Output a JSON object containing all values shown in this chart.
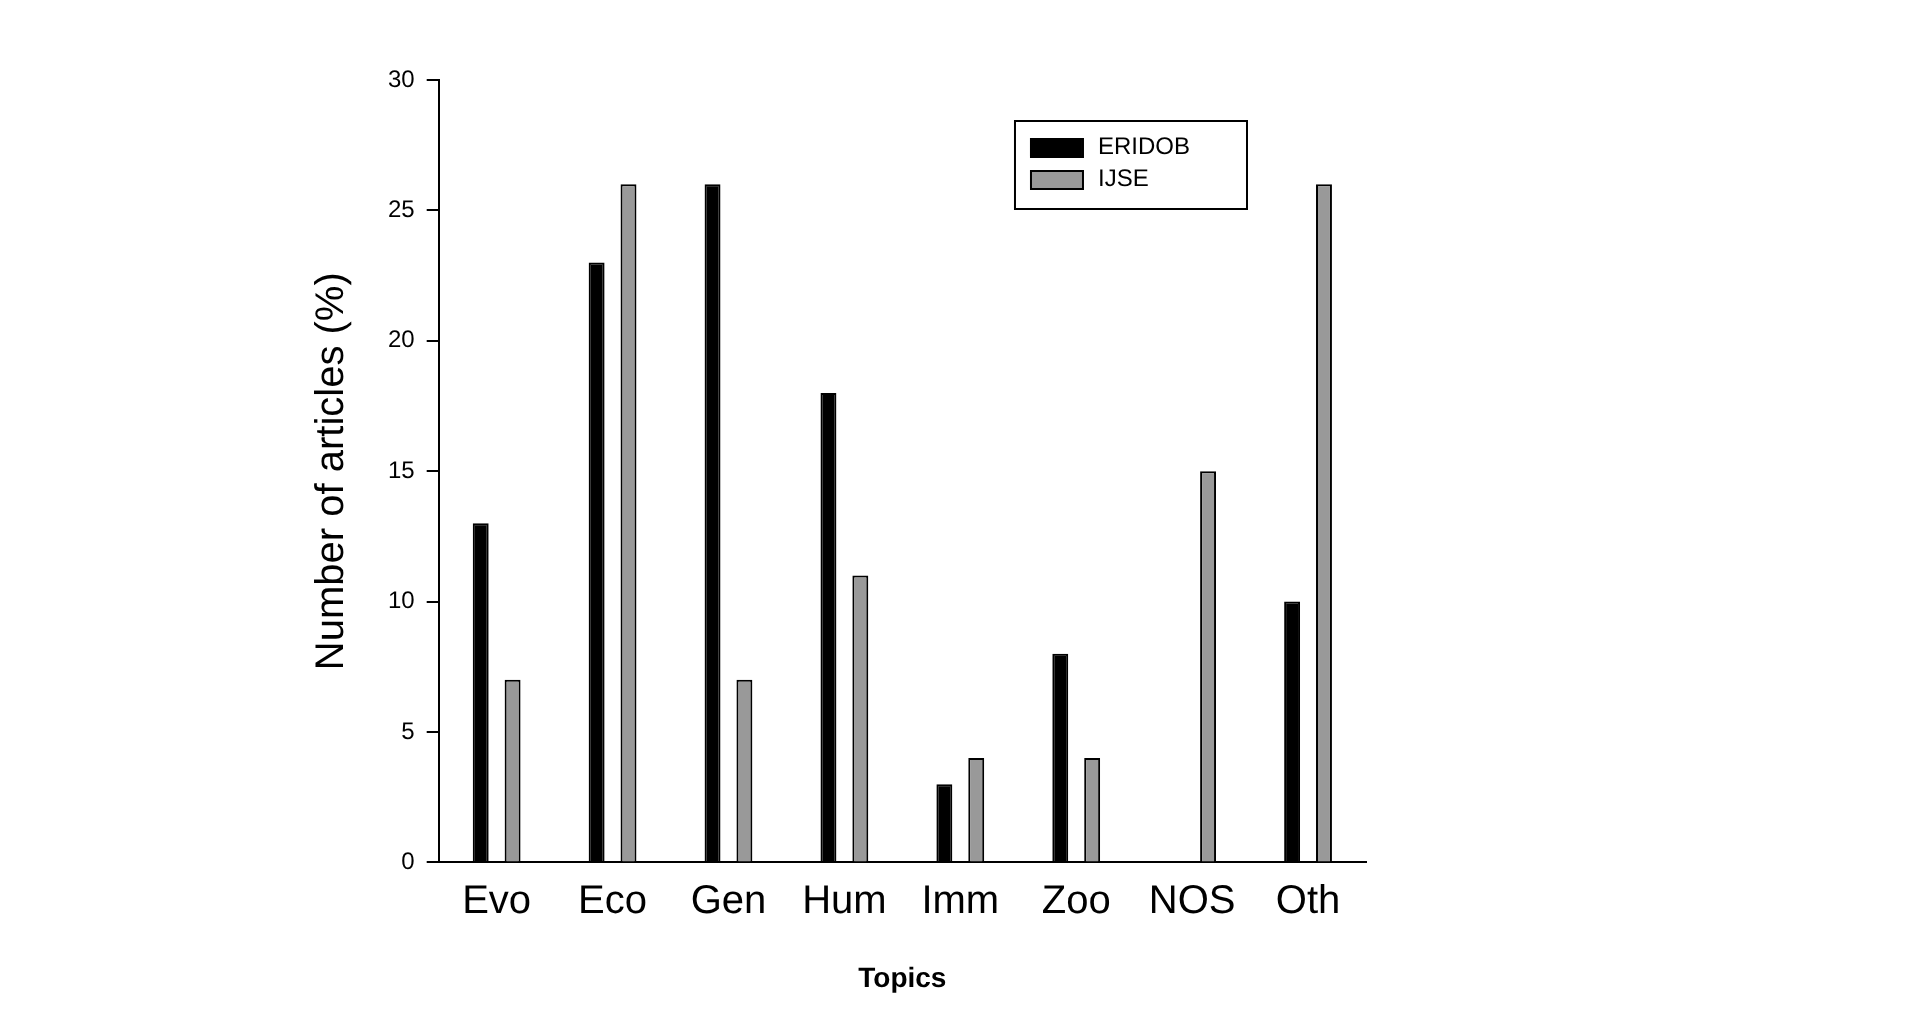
{
  "chart_data": {
    "type": "bar",
    "xlabel": "Topics",
    "ylabel": "Number of articles (%)",
    "categories": [
      "Evo",
      "Eco",
      "Gen",
      "Hum",
      "Imm",
      "Zoo",
      "NOS",
      "Oth"
    ],
    "series": [
      {
        "name": "ERIDOB",
        "color": "#000000",
        "values": [
          13,
          23,
          26,
          18,
          3,
          8,
          0,
          10
        ]
      },
      {
        "name": "IJSE",
        "color": "#999999",
        "values": [
          7,
          26,
          7,
          11,
          4,
          4,
          15,
          26
        ]
      }
    ],
    "ylim": [
      0,
      30
    ],
    "yticks": [
      0,
      5,
      10,
      15,
      20,
      25,
      30
    ],
    "grid": false,
    "legend": "top right"
  }
}
